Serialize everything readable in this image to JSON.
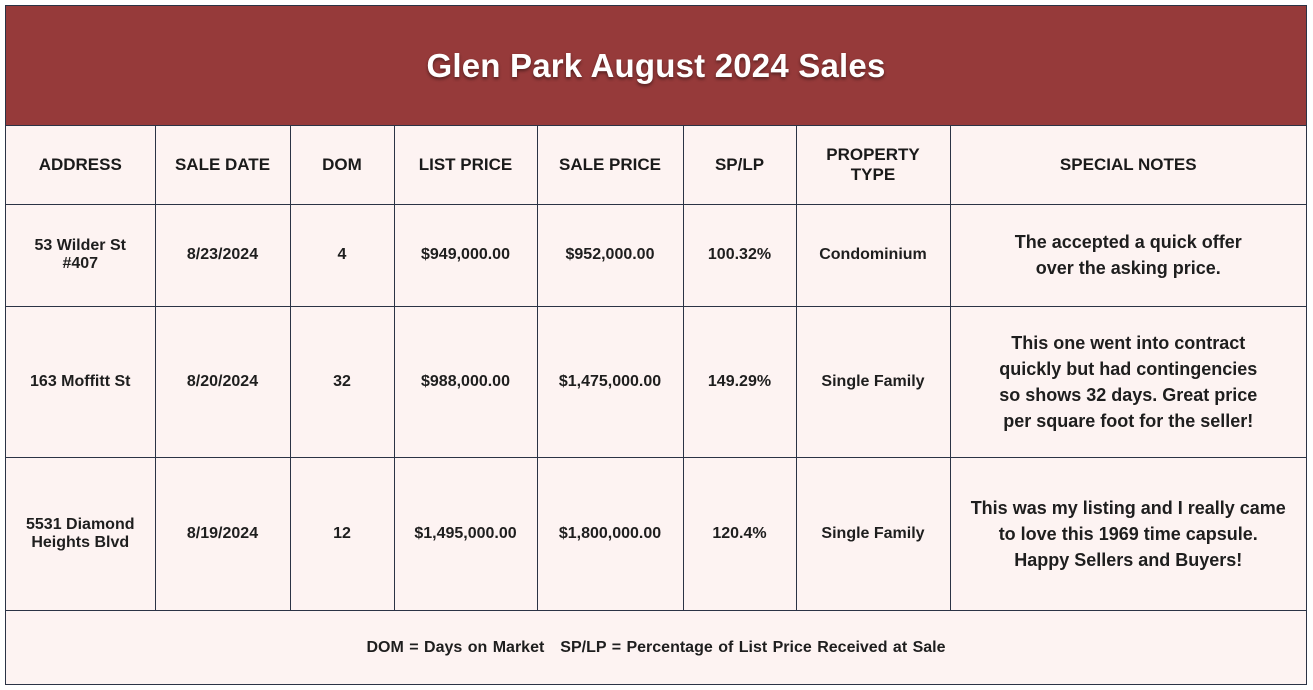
{
  "title": "Glen Park August 2024 Sales",
  "headers": {
    "address": "ADDRESS",
    "sale_date": "SALE DATE",
    "dom": "DOM",
    "list_price": "LIST PRICE",
    "sale_price": "SALE PRICE",
    "sp_lp": "SP/LP",
    "property_type": "PROPERTY TYPE",
    "special_notes": "SPECIAL NOTES"
  },
  "rows": [
    {
      "address_line1": "53 Wilder St",
      "address_line2": "#407",
      "sale_date": "8/23/2024",
      "dom": "4",
      "list_price": "$949,000.00",
      "sale_price": "$952,000.00",
      "sp_lp": "100.32%",
      "property_type": "Condominium",
      "notes_lines": [
        "The accepted a quick offer",
        "over the asking price."
      ]
    },
    {
      "address_line1": "163 Moffitt St",
      "address_line2": "",
      "sale_date": "8/20/2024",
      "dom": "32",
      "list_price": "$988,000.00",
      "sale_price": "$1,475,000.00",
      "sp_lp": "149.29%",
      "property_type": "Single Family",
      "notes_lines": [
        "This one went into contract",
        "quickly but had contingencies",
        "so shows 32 days. Great price",
        "per square foot for the seller!"
      ]
    },
    {
      "address_line1": "5531 Diamond",
      "address_line2": "Heights Blvd",
      "sale_date": "8/19/2024",
      "dom": "12",
      "list_price": "$1,495,000.00",
      "sale_price": "$1,800,000.00",
      "sp_lp": "120.4%",
      "property_type": "Single Family",
      "notes_lines": [
        "This was my listing and I really came",
        "to love this 1969 time capsule.",
        "Happy Sellers and Buyers!"
      ]
    }
  ],
  "footer": {
    "dom_legend": "DOM = Days on Market",
    "splp_legend": "SP/LP = Percentage of List Price Received at Sale"
  },
  "colors": {
    "title_background": "#963a3a",
    "body_background": "#fdf3f2",
    "border": "#2b3345"
  }
}
